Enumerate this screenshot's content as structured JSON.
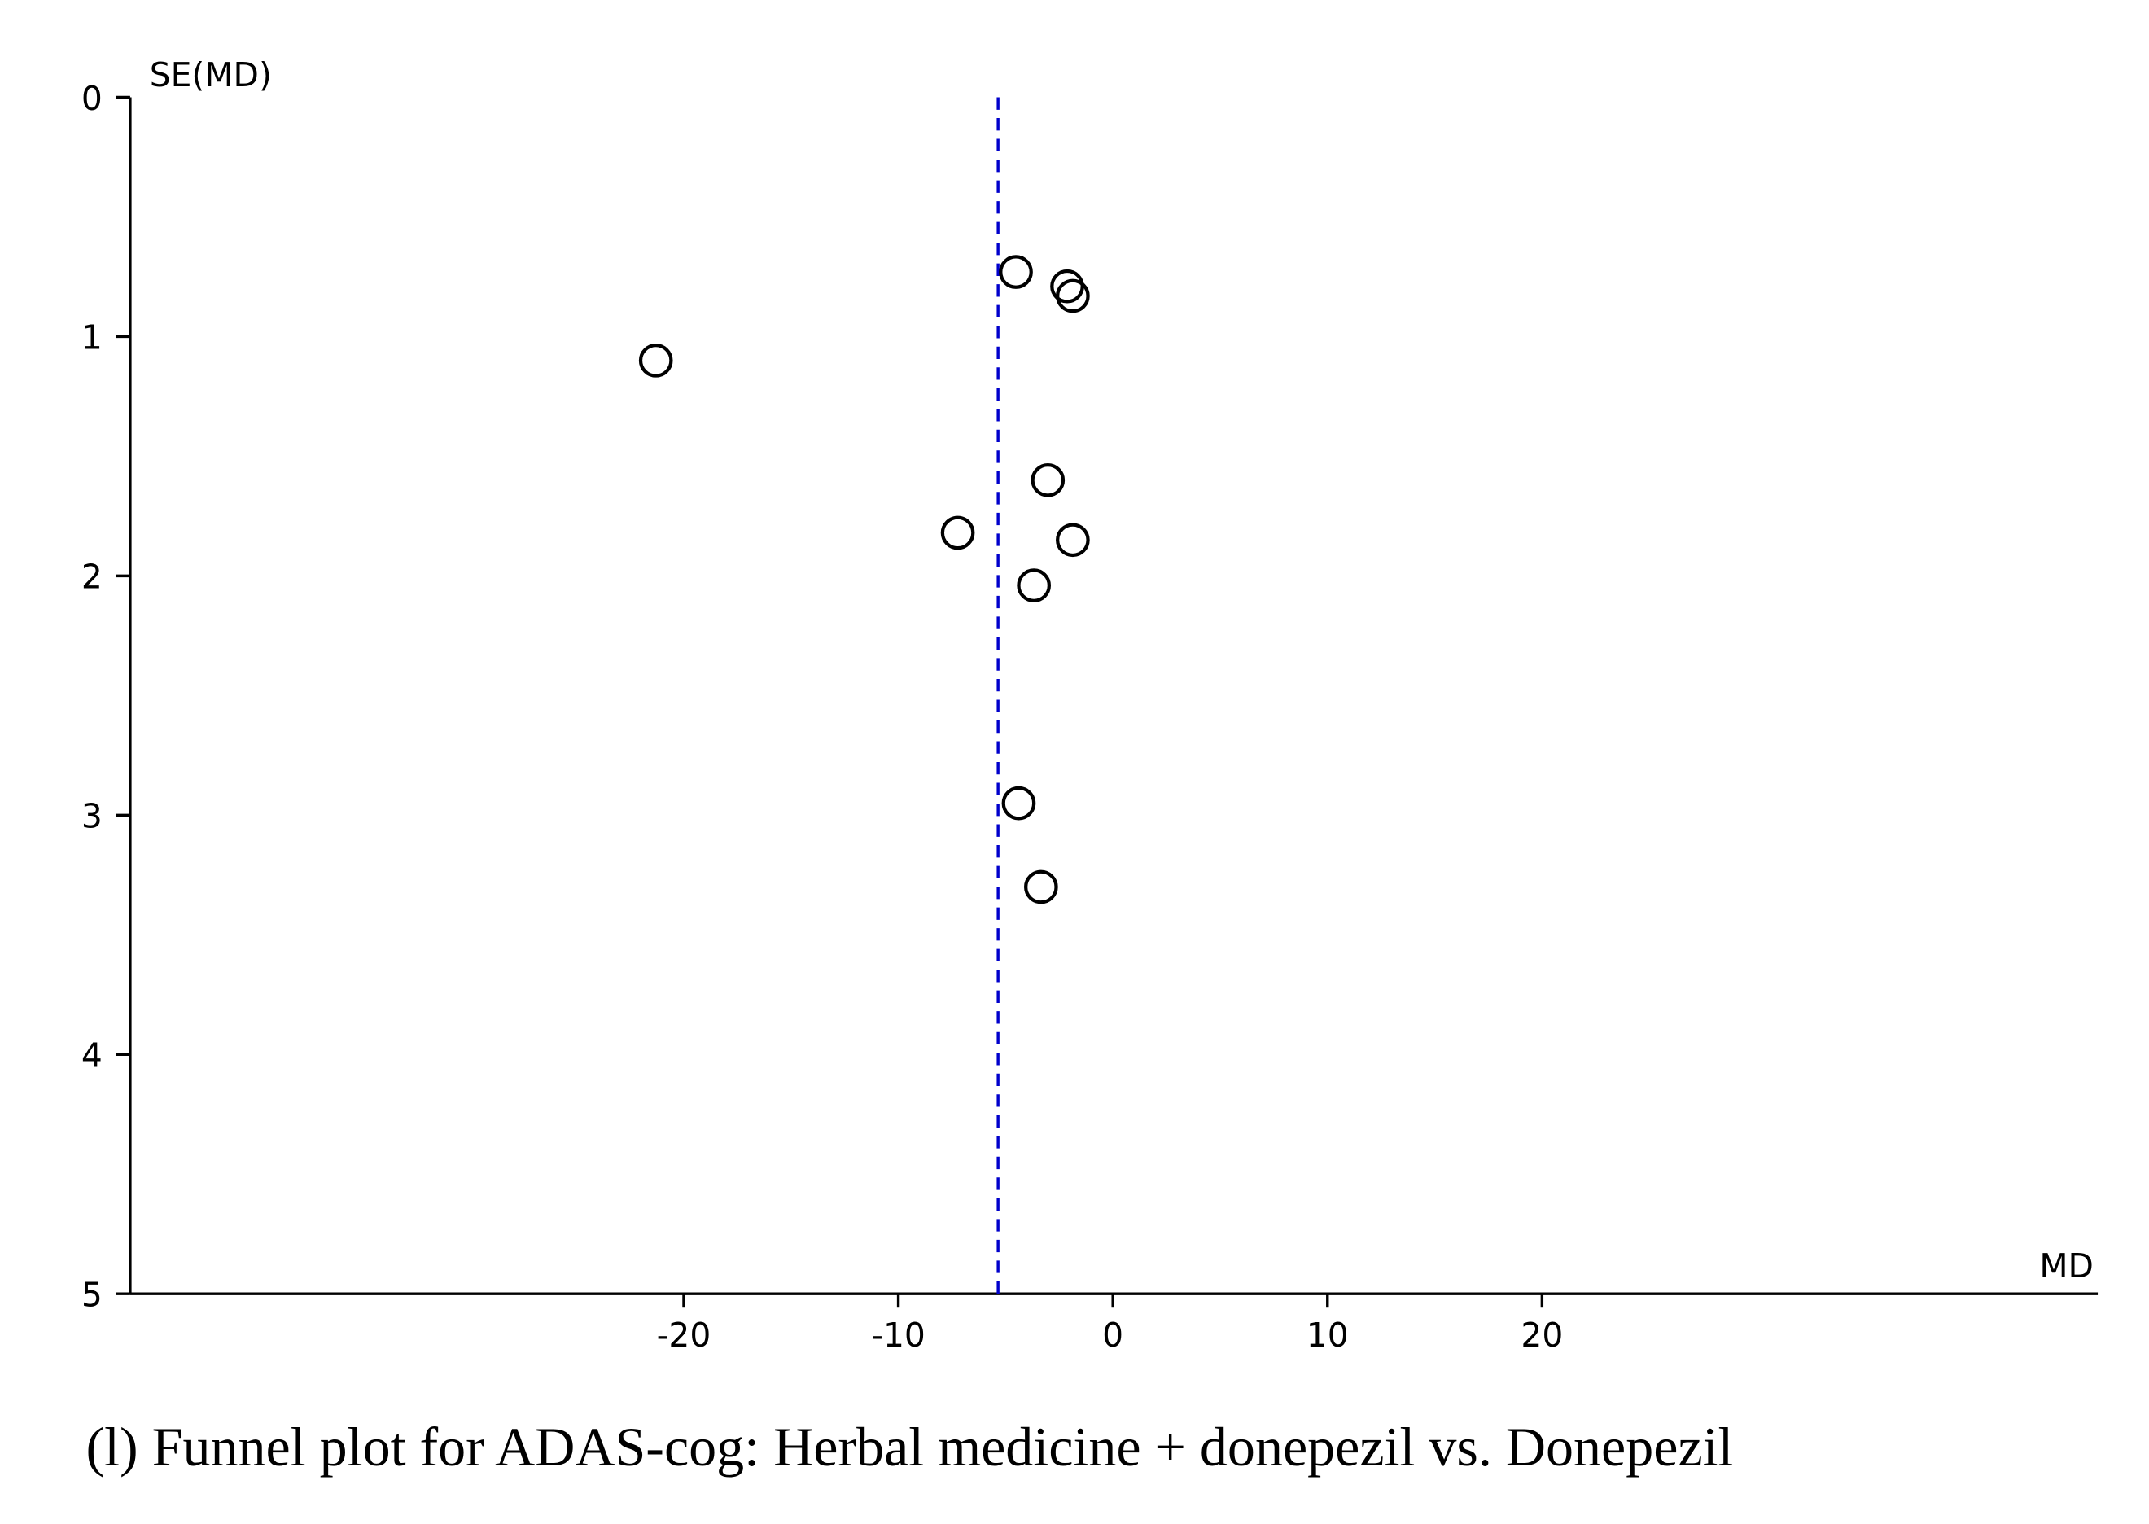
{
  "chart_data": {
    "type": "scatter",
    "caption": "(l) Funnel plot for ADAS-cog: Herbal medicine + donepezil vs. Donepezil",
    "x_label": "MD",
    "y_label": "SE(MD)",
    "x": [
      -4.52,
      -2.13,
      -1.87,
      -21.3,
      -3.03,
      -7.23,
      -1.87,
      -3.68,
      -4.39,
      -3.35
    ],
    "values": [
      0.73,
      0.79,
      0.83,
      1.1,
      1.6,
      1.82,
      1.85,
      2.04,
      2.95,
      3.3
    ],
    "color": "#000000",
    "pooled_estimate": -5.35,
    "pooled_color": "#0000cc",
    "xlim": [
      -45.8,
      45.9
    ],
    "xticks": [
      -20,
      -10,
      0,
      10,
      20
    ],
    "ylim": [
      0,
      5
    ],
    "yticks": [
      0,
      1,
      2,
      3,
      4,
      5
    ],
    "y_inverted": true
  }
}
